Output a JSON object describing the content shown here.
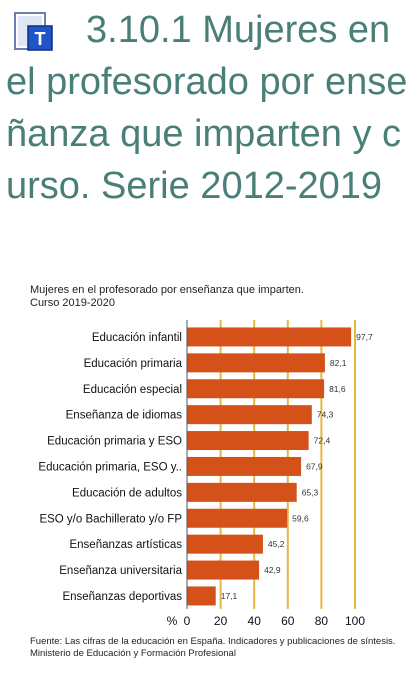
{
  "header": {
    "title": "3.10.1 Mujeres en el profesorado por enseñanza que imparten y curso. Serie 2012-2019"
  },
  "chart": {
    "title_line1": "Mujeres en el profesorado por enseñanza que imparten.",
    "title_line2": "Curso 2019-2020",
    "source": "Fuente: Las cifras de la educación en España. Indicadores y publicaciones de síntesis. Ministerio de Educación y Formación Profesional"
  },
  "chart_data": {
    "type": "bar",
    "orientation": "horizontal",
    "title": "Mujeres en el profesorado por enseñanza que imparten. Curso 2019-2020",
    "xlabel": "%",
    "ylabel": "",
    "categories": [
      "Educación infantil",
      "Educación primaria",
      "Educación especial",
      "Enseñanza de idiomas",
      "Educación primaria y ESO",
      "Educación primaria, ESO y..",
      "Educación de adultos",
      "ESO y/o Bachillerato y/o FP",
      "Enseñanzas artísticas",
      "Enseñanza universitaria",
      "Enseñanzas deportivas"
    ],
    "values": [
      97.7,
      82.1,
      81.6,
      74.3,
      72.4,
      67.9,
      65.3,
      59.6,
      45.2,
      42.9,
      17.1
    ],
    "value_labels": [
      "97,7",
      "82,1",
      "81,6",
      "74,3",
      "72,4",
      "67,9",
      "65,3",
      "59,6",
      "45,2",
      "42,9",
      "17,1"
    ],
    "xlim": [
      0,
      100
    ],
    "xticks": [
      0,
      20,
      40,
      60,
      80,
      100
    ],
    "grid": "vertical",
    "colors": {
      "bar": "#d4521a",
      "grid": "#e8b642",
      "axis": "#555555"
    }
  }
}
